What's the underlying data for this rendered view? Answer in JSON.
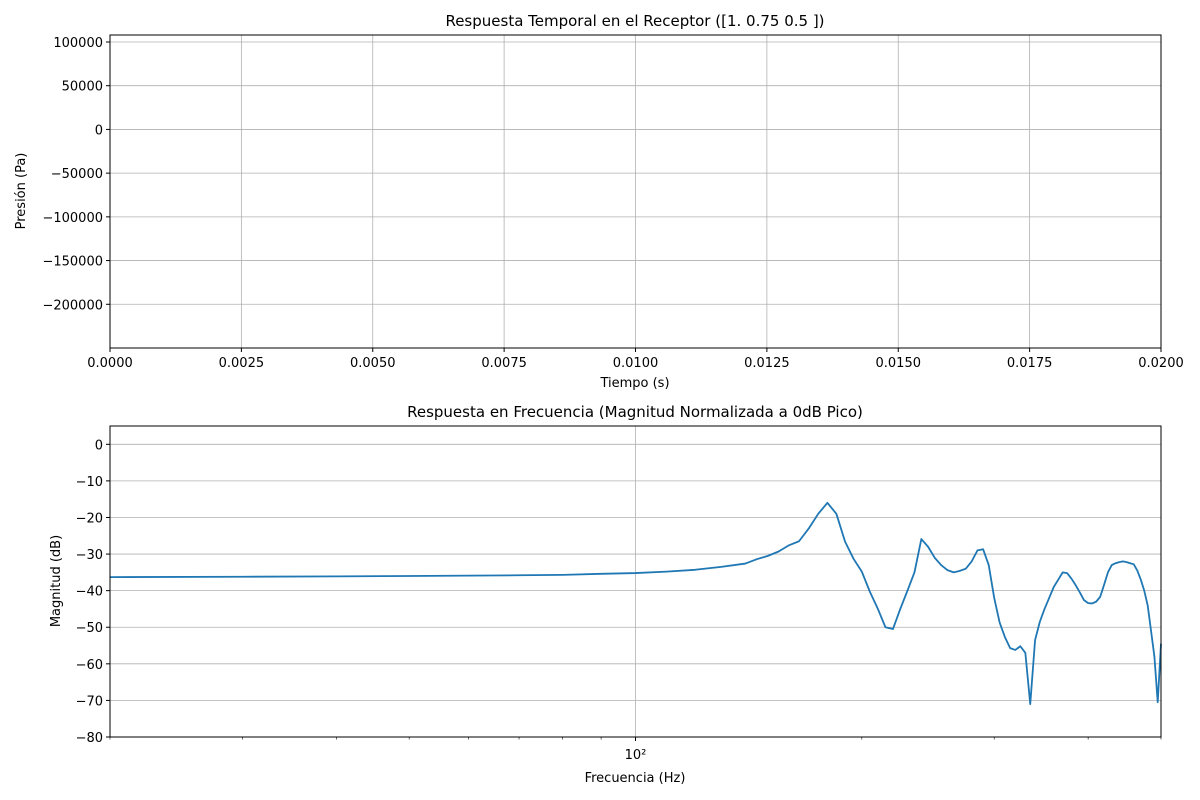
{
  "chart_data": [
    {
      "type": "line",
      "title": "Respuesta Temporal en el Receptor ([1.   0.75 0.5 ])",
      "xlabel": "Tiempo (s)",
      "ylabel": "Presión (Pa)",
      "xlim": [
        0,
        0.02
      ],
      "ylim": [
        -250000,
        108000
      ],
      "xticks": [
        0,
        0.0025,
        0.005,
        0.0075,
        0.01,
        0.0125,
        0.015,
        0.0175,
        0.02
      ],
      "xtick_labels": [
        "0.0000",
        "0.0025",
        "0.0050",
        "0.0075",
        "0.0100",
        "0.0125",
        "0.0150",
        "0.0175",
        "0.0200"
      ],
      "yticks": [
        100000,
        50000,
        0,
        -50000,
        -100000,
        -150000,
        -200000
      ],
      "ytick_labels": [
        "100000",
        "50000",
        "0",
        "−50000",
        "−100000",
        "−150000",
        "−200000"
      ],
      "grid": true,
      "series": []
    },
    {
      "type": "line",
      "title": "Respuesta en Frecuencia (Magnitud Normalizada a 0dB Pico)",
      "xlabel": "Frecuencia (Hz)",
      "ylabel": "Magnitud (dB)",
      "xscale": "log",
      "xlim": [
        20,
        500
      ],
      "ylim": [
        -80,
        5
      ],
      "xticks_major": [
        100
      ],
      "xtick_labels": [
        "10²"
      ],
      "yticks": [
        0,
        -10,
        -20,
        -30,
        -40,
        -50,
        -60,
        -70,
        -80
      ],
      "ytick_labels": [
        "0",
        "−10",
        "−20",
        "−30",
        "−40",
        "−50",
        "−60",
        "−70",
        "−80"
      ],
      "grid": true,
      "color": "#1f77b4",
      "series": [
        {
          "x": [
            20,
            30,
            40,
            50,
            60,
            70,
            80,
            90,
            100,
            110,
            120,
            130,
            140,
            145,
            150,
            155,
            160,
            165,
            170,
            175,
            180,
            185,
            190,
            195,
            200,
            205,
            210,
            215,
            220,
            225,
            230,
            235,
            240,
            245,
            250,
            255,
            260,
            265,
            270,
            275,
            280,
            285,
            290,
            295,
            300,
            305,
            310,
            315,
            320,
            325,
            330,
            335,
            340,
            345,
            350,
            355,
            360,
            365,
            370,
            375,
            380,
            385,
            390,
            395,
            400,
            405,
            410,
            415,
            420,
            425,
            430,
            435,
            440,
            445,
            450,
            455,
            460,
            465,
            470,
            475,
            480,
            485,
            490,
            495,
            500
          ],
          "y": [
            -36.3,
            -36.2,
            -36.1,
            -36.0,
            -35.9,
            -35.8,
            -35.7,
            -35.4,
            -35.2,
            -34.8,
            -34.3,
            -33.5,
            -32.6,
            -31.4,
            -30.5,
            -29.3,
            -27.6,
            -26.5,
            -23.0,
            -19.0,
            -16.0,
            -19.0,
            -26.6,
            -31.3,
            -34.8,
            -40.3,
            -44.9,
            -50.0,
            -50.5,
            -45.0,
            -40.0,
            -35.0,
            -25.9,
            -28.0,
            -31.0,
            -33.0,
            -34.4,
            -35.0,
            -34.6,
            -34.0,
            -32.0,
            -29.0,
            -28.7,
            -33.0,
            -42.0,
            -48.7,
            -52.7,
            -55.7,
            -56.2,
            -55.2,
            -57.0,
            -71.0,
            -53.5,
            -48.5,
            -45.0,
            -42.0,
            -39.0,
            -37.0,
            -35.0,
            -35.2,
            -36.7,
            -38.5,
            -40.5,
            -42.6,
            -43.4,
            -43.5,
            -43.0,
            -41.7,
            -38.4,
            -35.0,
            -33.0,
            -32.5,
            -32.2,
            -32.0,
            -32.2,
            -32.5,
            -32.8,
            -34.5,
            -37.0,
            -40.0,
            -44.0,
            -51.0,
            -58.0,
            -70.5,
            -54.5
          ]
        }
      ]
    }
  ]
}
